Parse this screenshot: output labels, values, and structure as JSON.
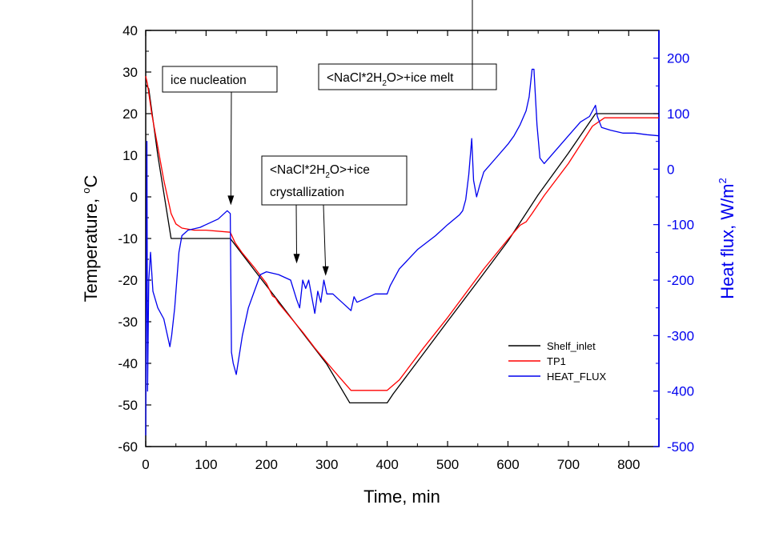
{
  "chart_data": {
    "type": "line",
    "title": "",
    "xlabel": "Time, min",
    "ylabel_left": {
      "text": "Temperature, ",
      "unit_sup": "o",
      "unit": "C"
    },
    "ylabel_right": {
      "text": "Heat flux, W/m",
      "unit_sup": "2"
    },
    "xlim": [
      0,
      850
    ],
    "ylim_left": [
      -60,
      40
    ],
    "ylim_right": [
      -500,
      250
    ],
    "xticks": [
      0,
      100,
      200,
      300,
      400,
      500,
      600,
      700,
      800
    ],
    "yticks_left": [
      40,
      30,
      20,
      10,
      0,
      -10,
      -20,
      -30,
      -40,
      -50,
      -60
    ],
    "yticks_right": [
      200,
      100,
      0,
      -100,
      -200,
      -300,
      -400,
      -500
    ],
    "grid": false,
    "legend_position": "lower-right",
    "colors": {
      "shelf": "#000000",
      "tp1": "#ff0000",
      "heat": "#0000ee",
      "right_axis": "#0000ee"
    },
    "series": [
      {
        "name": "Shelf_inlet",
        "axis": "left",
        "x": [
          0,
          5,
          20,
          42,
          60,
          100,
          140,
          180,
          220,
          260,
          300,
          338,
          345,
          400,
          410,
          450,
          500,
          550,
          600,
          650,
          700,
          745,
          760,
          850
        ],
        "y": [
          27,
          26,
          10,
          -10,
          -10,
          -10,
          -10,
          -17.6,
          -25.1,
          -32.7,
          -40.2,
          -49.5,
          -49.5,
          -49.5,
          -47.3,
          -39.6,
          -29.9,
          -20.3,
          -10.6,
          0.5,
          10.5,
          20,
          20,
          20
        ]
      },
      {
        "name": "TP1",
        "axis": "left",
        "x": [
          0,
          3,
          10,
          20,
          30,
          42,
          50,
          60,
          80,
          100,
          140,
          148,
          160,
          180,
          200,
          210,
          215,
          220,
          240,
          260,
          280,
          300,
          320,
          340,
          360,
          400,
          420,
          460,
          500,
          540,
          560,
          600,
          610,
          620,
          630,
          640,
          660,
          700,
          740,
          760,
          850
        ],
        "y": [
          29,
          27,
          20,
          12,
          4,
          -4,
          -6.5,
          -7.5,
          -8,
          -8,
          -8.5,
          -11,
          -13.5,
          -17,
          -20.8,
          -23.8,
          -24.3,
          -25.5,
          -29,
          -32.5,
          -36.3,
          -39.8,
          -43.2,
          -46.5,
          -46.5,
          -46.5,
          -44,
          -36.3,
          -29,
          -21.2,
          -17.3,
          -10.2,
          -8.5,
          -6.8,
          -6,
          -4,
          0.3,
          8,
          17,
          19,
          19
        ]
      },
      {
        "name": "HEAT_FLUX",
        "axis": "right",
        "x": [
          0,
          2,
          3,
          5,
          8,
          12,
          20,
          30,
          40,
          43,
          48,
          55,
          60,
          70,
          90,
          120,
          135,
          140,
          142,
          145,
          150,
          160,
          170,
          180,
          190,
          200,
          220,
          240,
          250,
          255,
          260,
          265,
          270,
          275,
          280,
          285,
          290,
          295,
          300,
          310,
          320,
          330,
          340,
          345,
          350,
          360,
          380,
          400,
          405,
          420,
          450,
          480,
          500,
          520,
          525,
          530,
          535,
          540,
          543,
          548,
          553,
          560,
          580,
          600,
          610,
          620,
          630,
          635,
          640,
          643,
          648,
          653,
          660,
          680,
          700,
          720,
          735,
          745,
          748,
          755,
          770,
          790,
          810,
          830,
          850
        ],
        "y": [
          -480,
          50,
          -400,
          -200,
          -150,
          -220,
          -250,
          -270,
          -320,
          -300,
          -250,
          -150,
          -120,
          -110,
          -105,
          -90,
          -75,
          -80,
          -330,
          -350,
          -370,
          -300,
          -250,
          -220,
          -190,
          -185,
          -190,
          -200,
          -235,
          -250,
          -200,
          -215,
          -200,
          -230,
          -260,
          -220,
          -240,
          -200,
          -225,
          -225,
          -235,
          -245,
          -255,
          -230,
          -240,
          -235,
          -225,
          -225,
          -210,
          -180,
          -145,
          -120,
          -100,
          -82,
          -75,
          -55,
          -10,
          55,
          -20,
          -50,
          -30,
          -5,
          20,
          45,
          60,
          80,
          105,
          130,
          180,
          180,
          80,
          20,
          10,
          35,
          60,
          85,
          95,
          115,
          95,
          75,
          70,
          65,
          65,
          62,
          60
        ]
      }
    ],
    "annotations": [
      {
        "id": "ice-nucleation",
        "lines": [
          {
            "text": "ice nucleation"
          }
        ],
        "arrows_to": [
          {
            "x": 141,
            "y": -2
          }
        ]
      },
      {
        "id": "crystallization",
        "lines": [
          {
            "pre": "<NaCl*2H",
            "sub": "2",
            "post": "O>+ice"
          },
          {
            "text": "crystallization"
          }
        ],
        "arrows_to": [
          {
            "x": 250,
            "y": -16
          },
          {
            "x": 298,
            "y": -19
          }
        ]
      },
      {
        "id": "melt",
        "lines": [
          {
            "pre": "<NaCl*2H",
            "sub": "2",
            "post": "O>+ice melt"
          }
        ],
        "arrows_to": [
          {
            "x": 541,
            "y": 65
          }
        ]
      }
    ]
  }
}
